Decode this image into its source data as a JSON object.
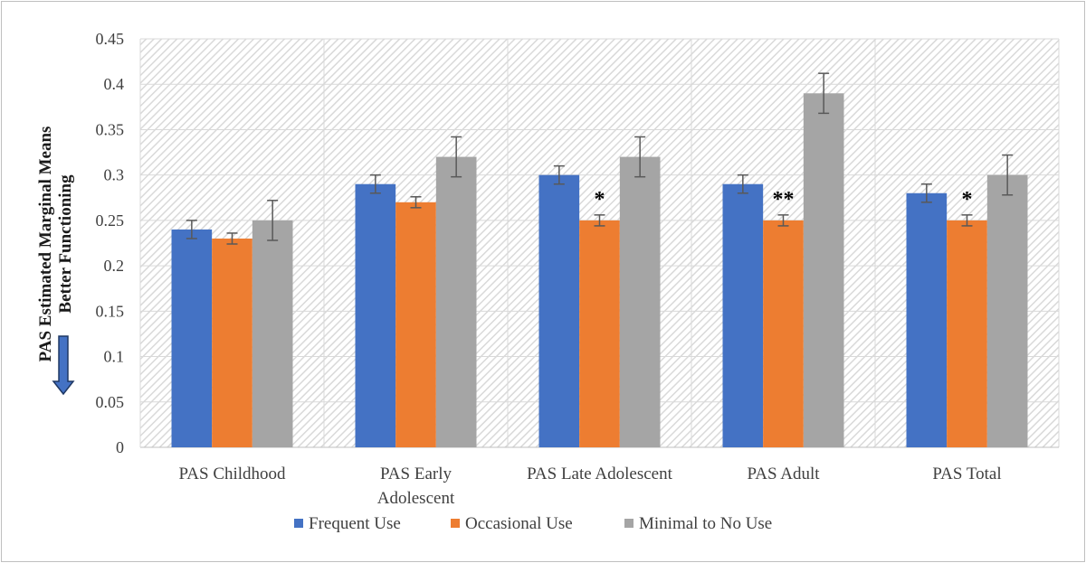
{
  "chart_data": {
    "type": "bar",
    "title": "",
    "xlabel": "",
    "ylabel_lines": [
      "PAS Estimated Marginal Means",
      "Better Functioning"
    ],
    "ylim": [
      0,
      0.45
    ],
    "yticks": [
      "0",
      "0.05",
      "0.1",
      "0.15",
      "0.2",
      "0.25",
      "0.3",
      "0.35",
      "0.4",
      "0.45"
    ],
    "ytick_values": [
      0,
      0.05,
      0.1,
      0.15,
      0.2,
      0.25,
      0.3,
      0.35,
      0.4,
      0.45
    ],
    "categories": [
      [
        "PAS Childhood"
      ],
      [
        "PAS Early",
        "Adolescent"
      ],
      [
        "PAS Late Adolescent"
      ],
      [
        "PAS Adult"
      ],
      [
        "PAS Total"
      ]
    ],
    "series": [
      {
        "name": "Frequent Use",
        "color": "#4472c4",
        "values": [
          0.24,
          0.29,
          0.3,
          0.29,
          0.28
        ],
        "errors": [
          0.01,
          0.01,
          0.01,
          0.01,
          0.01
        ]
      },
      {
        "name": "Occasional Use",
        "color": "#ed7d31",
        "values": [
          0.23,
          0.27,
          0.25,
          0.25,
          0.25
        ],
        "errors": [
          0.006,
          0.006,
          0.006,
          0.006,
          0.006
        ]
      },
      {
        "name": "Minimal to No Use",
        "color": "#a5a5a5",
        "values": [
          0.25,
          0.32,
          0.32,
          0.39,
          0.3
        ],
        "errors": [
          0.022,
          0.022,
          0.022,
          0.022,
          0.022
        ]
      }
    ],
    "annotations": [
      {
        "category": 2,
        "series": 1,
        "text": "*"
      },
      {
        "category": 3,
        "series": 1,
        "text": "**"
      },
      {
        "category": 4,
        "series": 1,
        "text": "*"
      }
    ],
    "legend_position": "bottom",
    "grid": true
  }
}
